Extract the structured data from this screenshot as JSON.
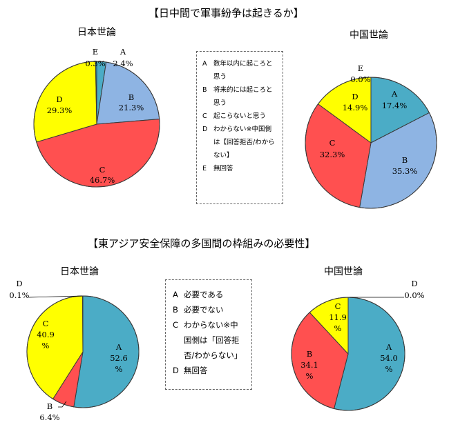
{
  "sections": [
    {
      "title": "【日中間で軍事紛争は起きるか】"
    },
    {
      "title": "【東アジア安全保障の多国間の枠組みの必要性】"
    }
  ],
  "legends": [
    [
      {
        "key": "A",
        "text": "数年以内に起ころと思う"
      },
      {
        "key": "B",
        "text": "将来的には起ころと思う"
      },
      {
        "key": "C",
        "text": "起こらないと思う"
      },
      {
        "key": "D",
        "text": "わからない※中国側は【回答拒否/わからない】"
      },
      {
        "key": "E",
        "text": "無回答"
      }
    ],
    [
      {
        "key": "A",
        "text": "必要である"
      },
      {
        "key": "B",
        "text": "必要でない"
      },
      {
        "key": "C",
        "text": "わからない※中国側は「回答拒否/わからない」"
      },
      {
        "key": "D",
        "text": "無回答"
      }
    ]
  ],
  "colors": {
    "A": "#4bacc6",
    "B": "#8eb4e3",
    "C": "#ff5050",
    "D": "#ffff00",
    "E": "#00b0f0",
    "B2": "#ff5050",
    "C2": "#ffff00"
  },
  "chart_data": [
    {
      "type": "pie",
      "title": "日本世論",
      "slices": [
        {
          "label": "A",
          "value": 2.4,
          "text": "2.4%"
        },
        {
          "label": "B",
          "value": 21.3,
          "text": "21.3%"
        },
        {
          "label": "C",
          "value": 46.7,
          "text": "46.7%"
        },
        {
          "label": "D",
          "value": 29.3,
          "text": "29.3%"
        },
        {
          "label": "E",
          "value": 0.3,
          "text": "0.3%"
        }
      ]
    },
    {
      "type": "pie",
      "title": "中国世論",
      "slices": [
        {
          "label": "A",
          "value": 17.4,
          "text": "17.4%"
        },
        {
          "label": "B",
          "value": 35.3,
          "text": "35.3%"
        },
        {
          "label": "C",
          "value": 32.3,
          "text": "32.3%"
        },
        {
          "label": "D",
          "value": 14.9,
          "text": "14.9%"
        },
        {
          "label": "E",
          "value": 0.0,
          "text": "0.0%"
        }
      ]
    },
    {
      "type": "pie",
      "title": "日本世論",
      "slices": [
        {
          "label": "A",
          "value": 52.6,
          "text": "52.6\n%"
        },
        {
          "label": "B",
          "value": 6.4,
          "text": "6.4%"
        },
        {
          "label": "C",
          "value": 40.9,
          "text": "40.9\n%"
        },
        {
          "label": "D",
          "value": 0.1,
          "text": "0.1%"
        }
      ]
    },
    {
      "type": "pie",
      "title": "中国世論",
      "slices": [
        {
          "label": "A",
          "value": 54.0,
          "text": "54.0\n%"
        },
        {
          "label": "B",
          "value": 34.1,
          "text": "34.1\n%"
        },
        {
          "label": "C",
          "value": 11.9,
          "text": "11.9\n%"
        },
        {
          "label": "D",
          "value": 0.0,
          "text": "0.0%"
        }
      ]
    }
  ]
}
